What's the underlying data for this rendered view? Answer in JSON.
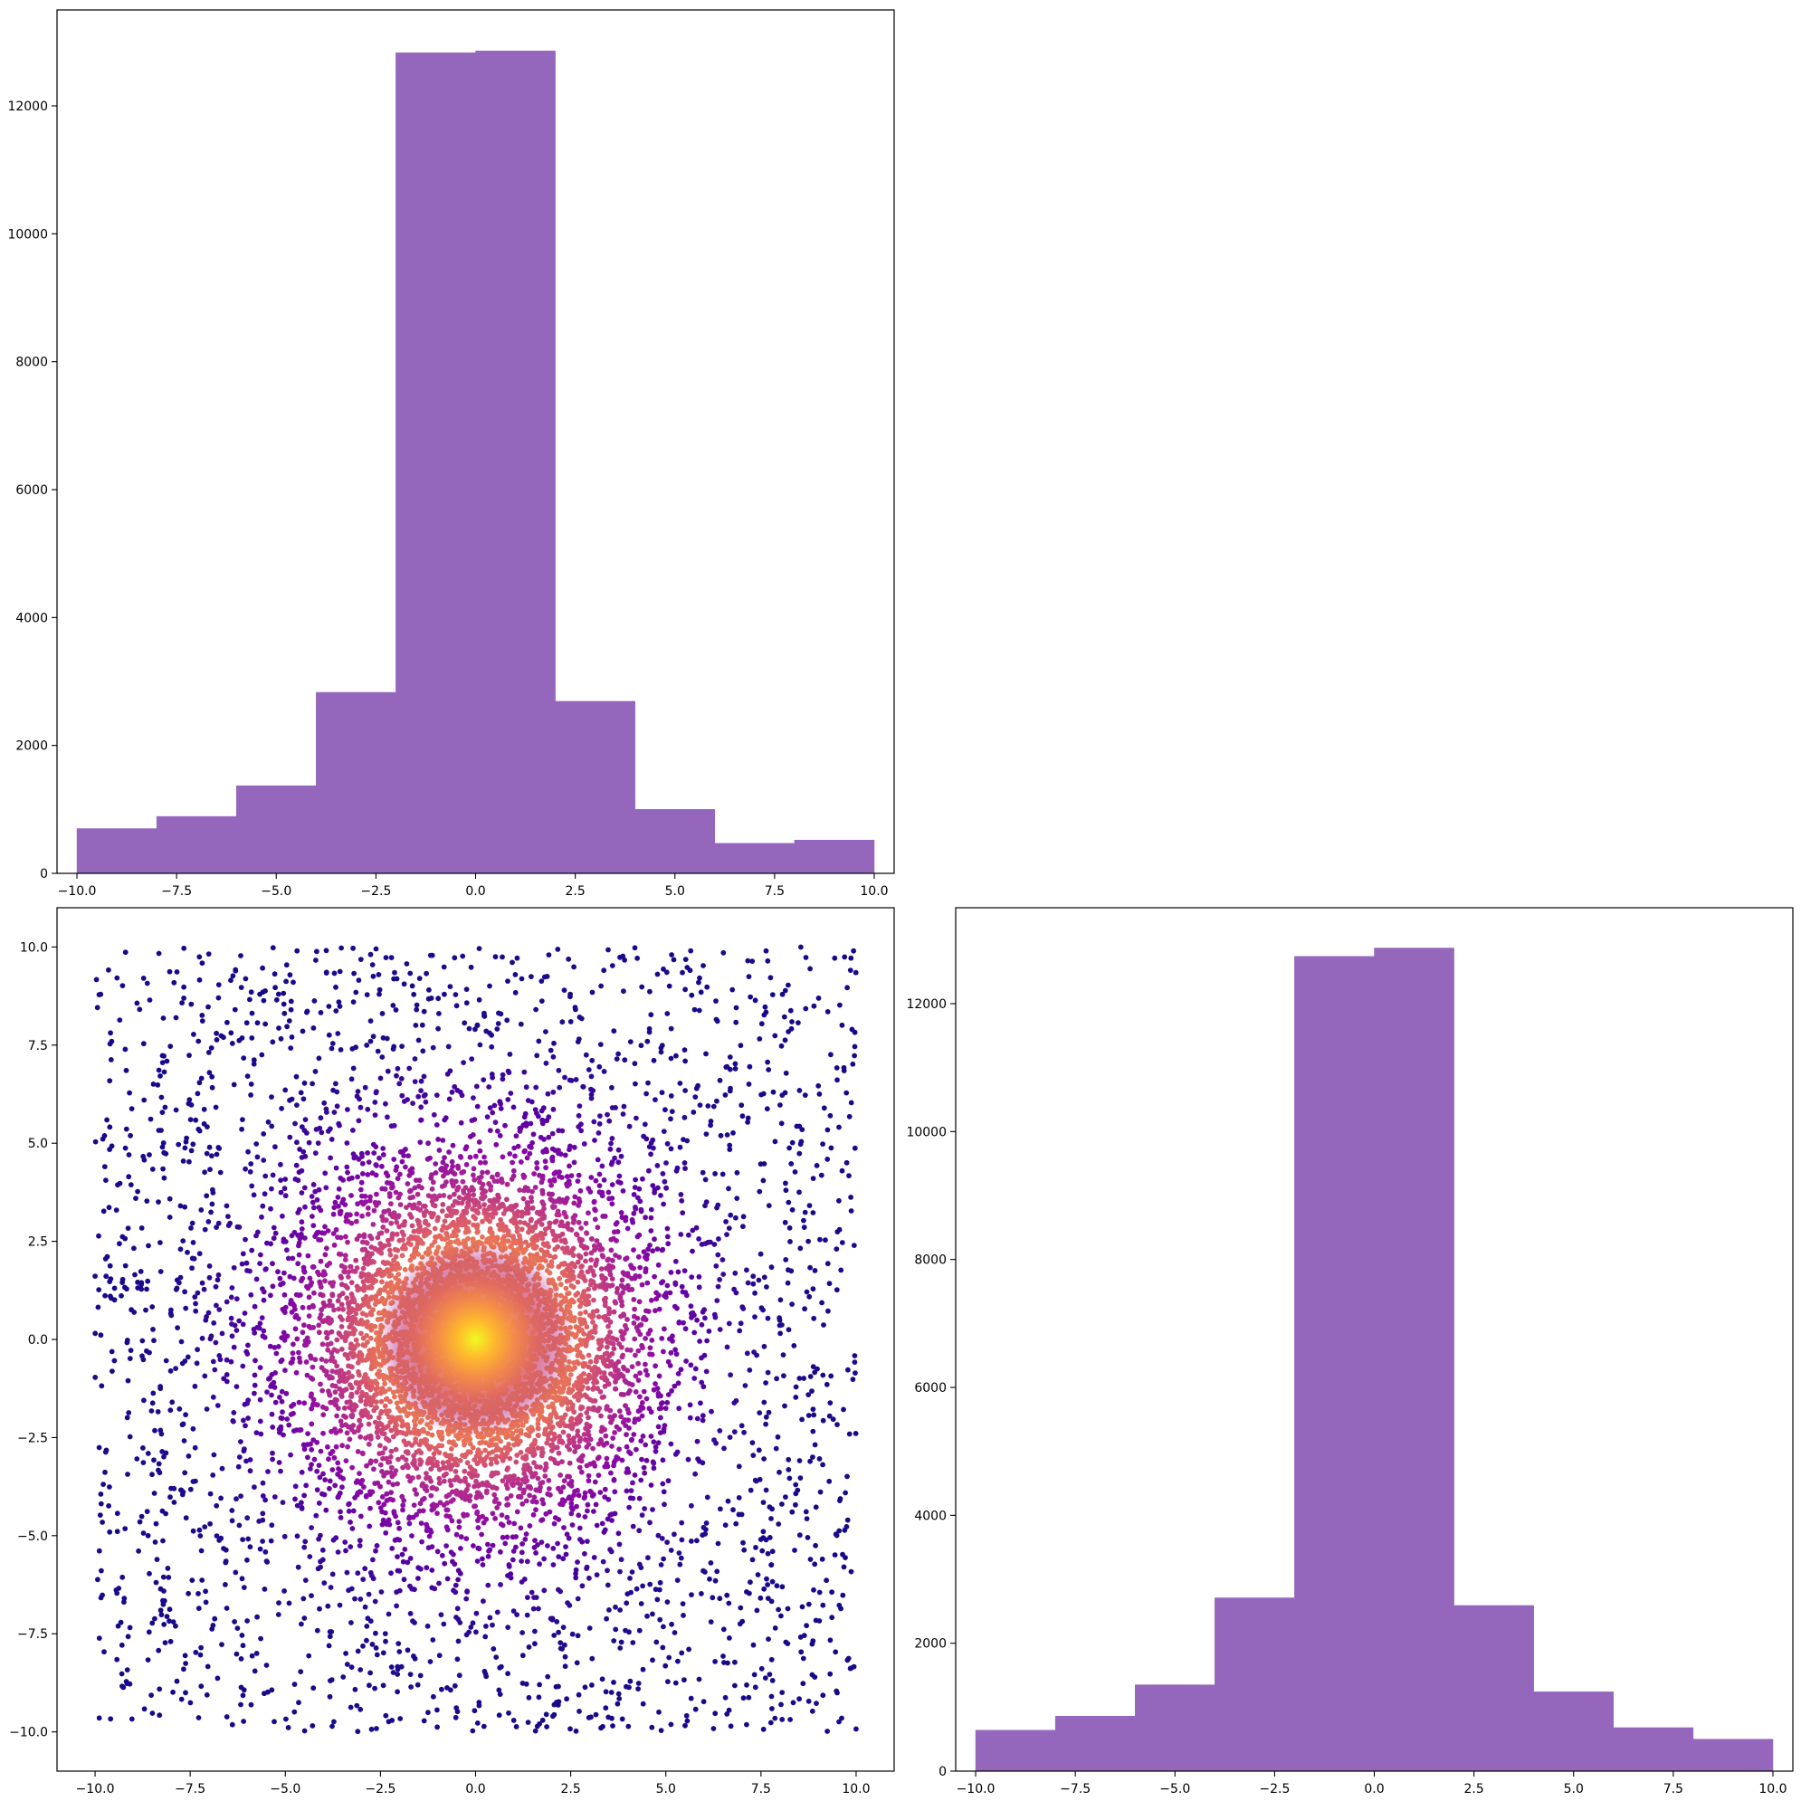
{
  "figure": {
    "layout": "3x3 corner plot (lower-left triangle): two marginal histograms and one 2-D scatter density panel",
    "background": "#ffffff"
  },
  "colors": {
    "histogram_fill": "#9467bd",
    "scatter_colormap": "plasma",
    "scatter_low": "#1e0b8c",
    "scatter_mid": "#9c1ba0",
    "scatter_high": "#f0f921"
  },
  "chart_data": [
    {
      "id": "hist-top",
      "type": "bar",
      "subtype": "histogram",
      "bin_edges": [
        -10,
        -8,
        -6,
        -4,
        -2,
        0,
        2,
        4,
        6,
        8,
        10
      ],
      "values": [
        700,
        890,
        1370,
        2830,
        12830,
        12860,
        2690,
        1000,
        470,
        520
      ],
      "xlim": [
        -10.5,
        10.5
      ],
      "ylim": [
        0,
        13500
      ],
      "xticks": [
        -10,
        -7.5,
        -5,
        -2.5,
        0,
        2.5,
        5,
        7.5,
        10
      ],
      "xtick_labels": [
        "−10.0",
        "−7.5",
        "−5.0",
        "−2.5",
        "0.0",
        "2.5",
        "5.0",
        "7.5",
        "10.0"
      ],
      "yticks": [
        0,
        2000,
        4000,
        6000,
        8000,
        10000,
        12000
      ],
      "ytick_labels": [
        "0",
        "2000",
        "4000",
        "6000",
        "8000",
        "10000",
        "12000"
      ],
      "title": "",
      "xlabel": "",
      "ylabel": "",
      "grid": false
    },
    {
      "id": "scatter",
      "type": "scatter",
      "description": "Scatter of points over [-10,10]x[-10,10]: a dense Gaussian-like core centered at (0,0) plus a uniform background; points colored by local density (plasma colormap, bright yellow at center).",
      "core_center": [
        0,
        0
      ],
      "core_sigma_approx": 2,
      "extent": [
        -10,
        10
      ],
      "xlim": [
        -11,
        11
      ],
      "ylim": [
        -11,
        11
      ],
      "xticks": [
        -10,
        -7.5,
        -5,
        -2.5,
        0,
        2.5,
        5,
        7.5,
        10
      ],
      "xtick_labels": [
        "−10.0",
        "−7.5",
        "−5.0",
        "−2.5",
        "0.0",
        "2.5",
        "5.0",
        "7.5",
        "10.0"
      ],
      "yticks": [
        -10,
        -7.5,
        -5,
        -2.5,
        0,
        2.5,
        5,
        7.5,
        10
      ],
      "ytick_labels": [
        "−10.0",
        "−7.5",
        "−5.0",
        "−2.5",
        "0.0",
        "2.5",
        "5.0",
        "7.5",
        "10.0"
      ],
      "title": "",
      "xlabel": "",
      "ylabel": "",
      "grid": false
    },
    {
      "id": "hist-right",
      "type": "bar",
      "subtype": "histogram",
      "bin_edges": [
        -10,
        -8,
        -6,
        -4,
        -2,
        0,
        2,
        4,
        6,
        8,
        10
      ],
      "values": [
        640,
        860,
        1350,
        2710,
        12740,
        12870,
        2590,
        1240,
        680,
        500
      ],
      "xlim": [
        -10.5,
        10.5
      ],
      "ylim": [
        0,
        13500
      ],
      "xticks": [
        -10,
        -7.5,
        -5,
        -2.5,
        0,
        2.5,
        5,
        7.5,
        10
      ],
      "xtick_labels": [
        "−10.0",
        "−7.5",
        "−5.0",
        "−2.5",
        "0.0",
        "2.5",
        "5.0",
        "7.5",
        "10.0"
      ],
      "yticks": [
        0,
        2000,
        4000,
        6000,
        8000,
        10000,
        12000
      ],
      "ytick_labels": [
        "0",
        "2000",
        "4000",
        "6000",
        "8000",
        "10000",
        "12000"
      ],
      "title": "",
      "xlabel": "",
      "ylabel": "",
      "grid": false
    }
  ]
}
